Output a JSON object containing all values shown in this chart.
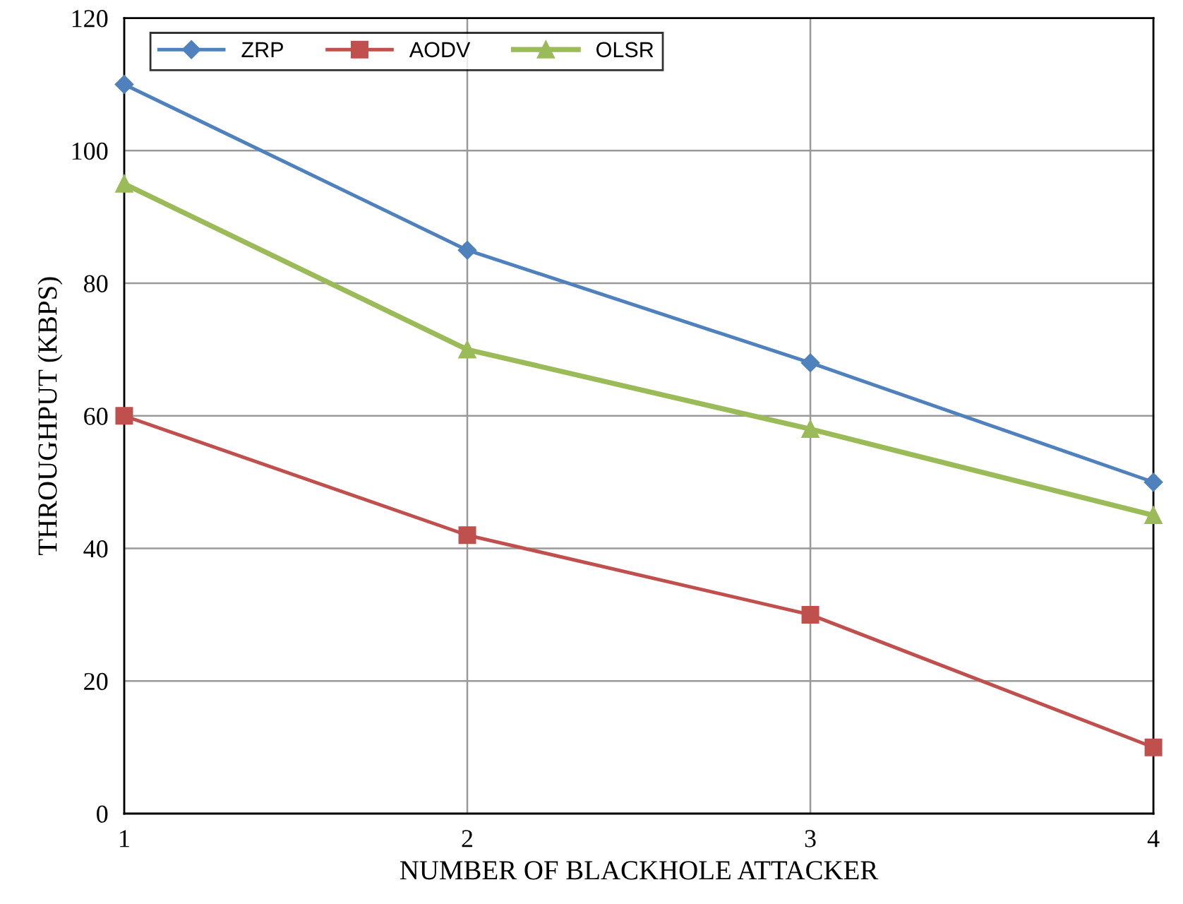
{
  "chart_data": {
    "type": "line",
    "xlabel": "NUMBER OF BLACKHOLE ATTACKER",
    "ylabel": "THROUGHPUT (KBPS)",
    "x": [
      1,
      2,
      3,
      4
    ],
    "series": [
      {
        "name": "ZRP",
        "color": "#4f81bd",
        "marker": "diamond",
        "values": [
          110,
          85,
          68,
          50
        ]
      },
      {
        "name": "AODV",
        "color": "#c0504d",
        "marker": "square",
        "values": [
          60,
          42,
          30,
          10
        ]
      },
      {
        "name": "OLSR",
        "color": "#9bbb59",
        "marker": "triangle",
        "values": [
          95,
          70,
          58,
          45
        ]
      }
    ],
    "xlim": [
      1,
      4
    ],
    "xticks": [
      1,
      2,
      3,
      4
    ],
    "ylim": [
      0,
      120
    ],
    "yticks": [
      0,
      20,
      40,
      60,
      80,
      100,
      120
    ],
    "grid": true,
    "legend": "top left",
    "line_style": "solid"
  }
}
